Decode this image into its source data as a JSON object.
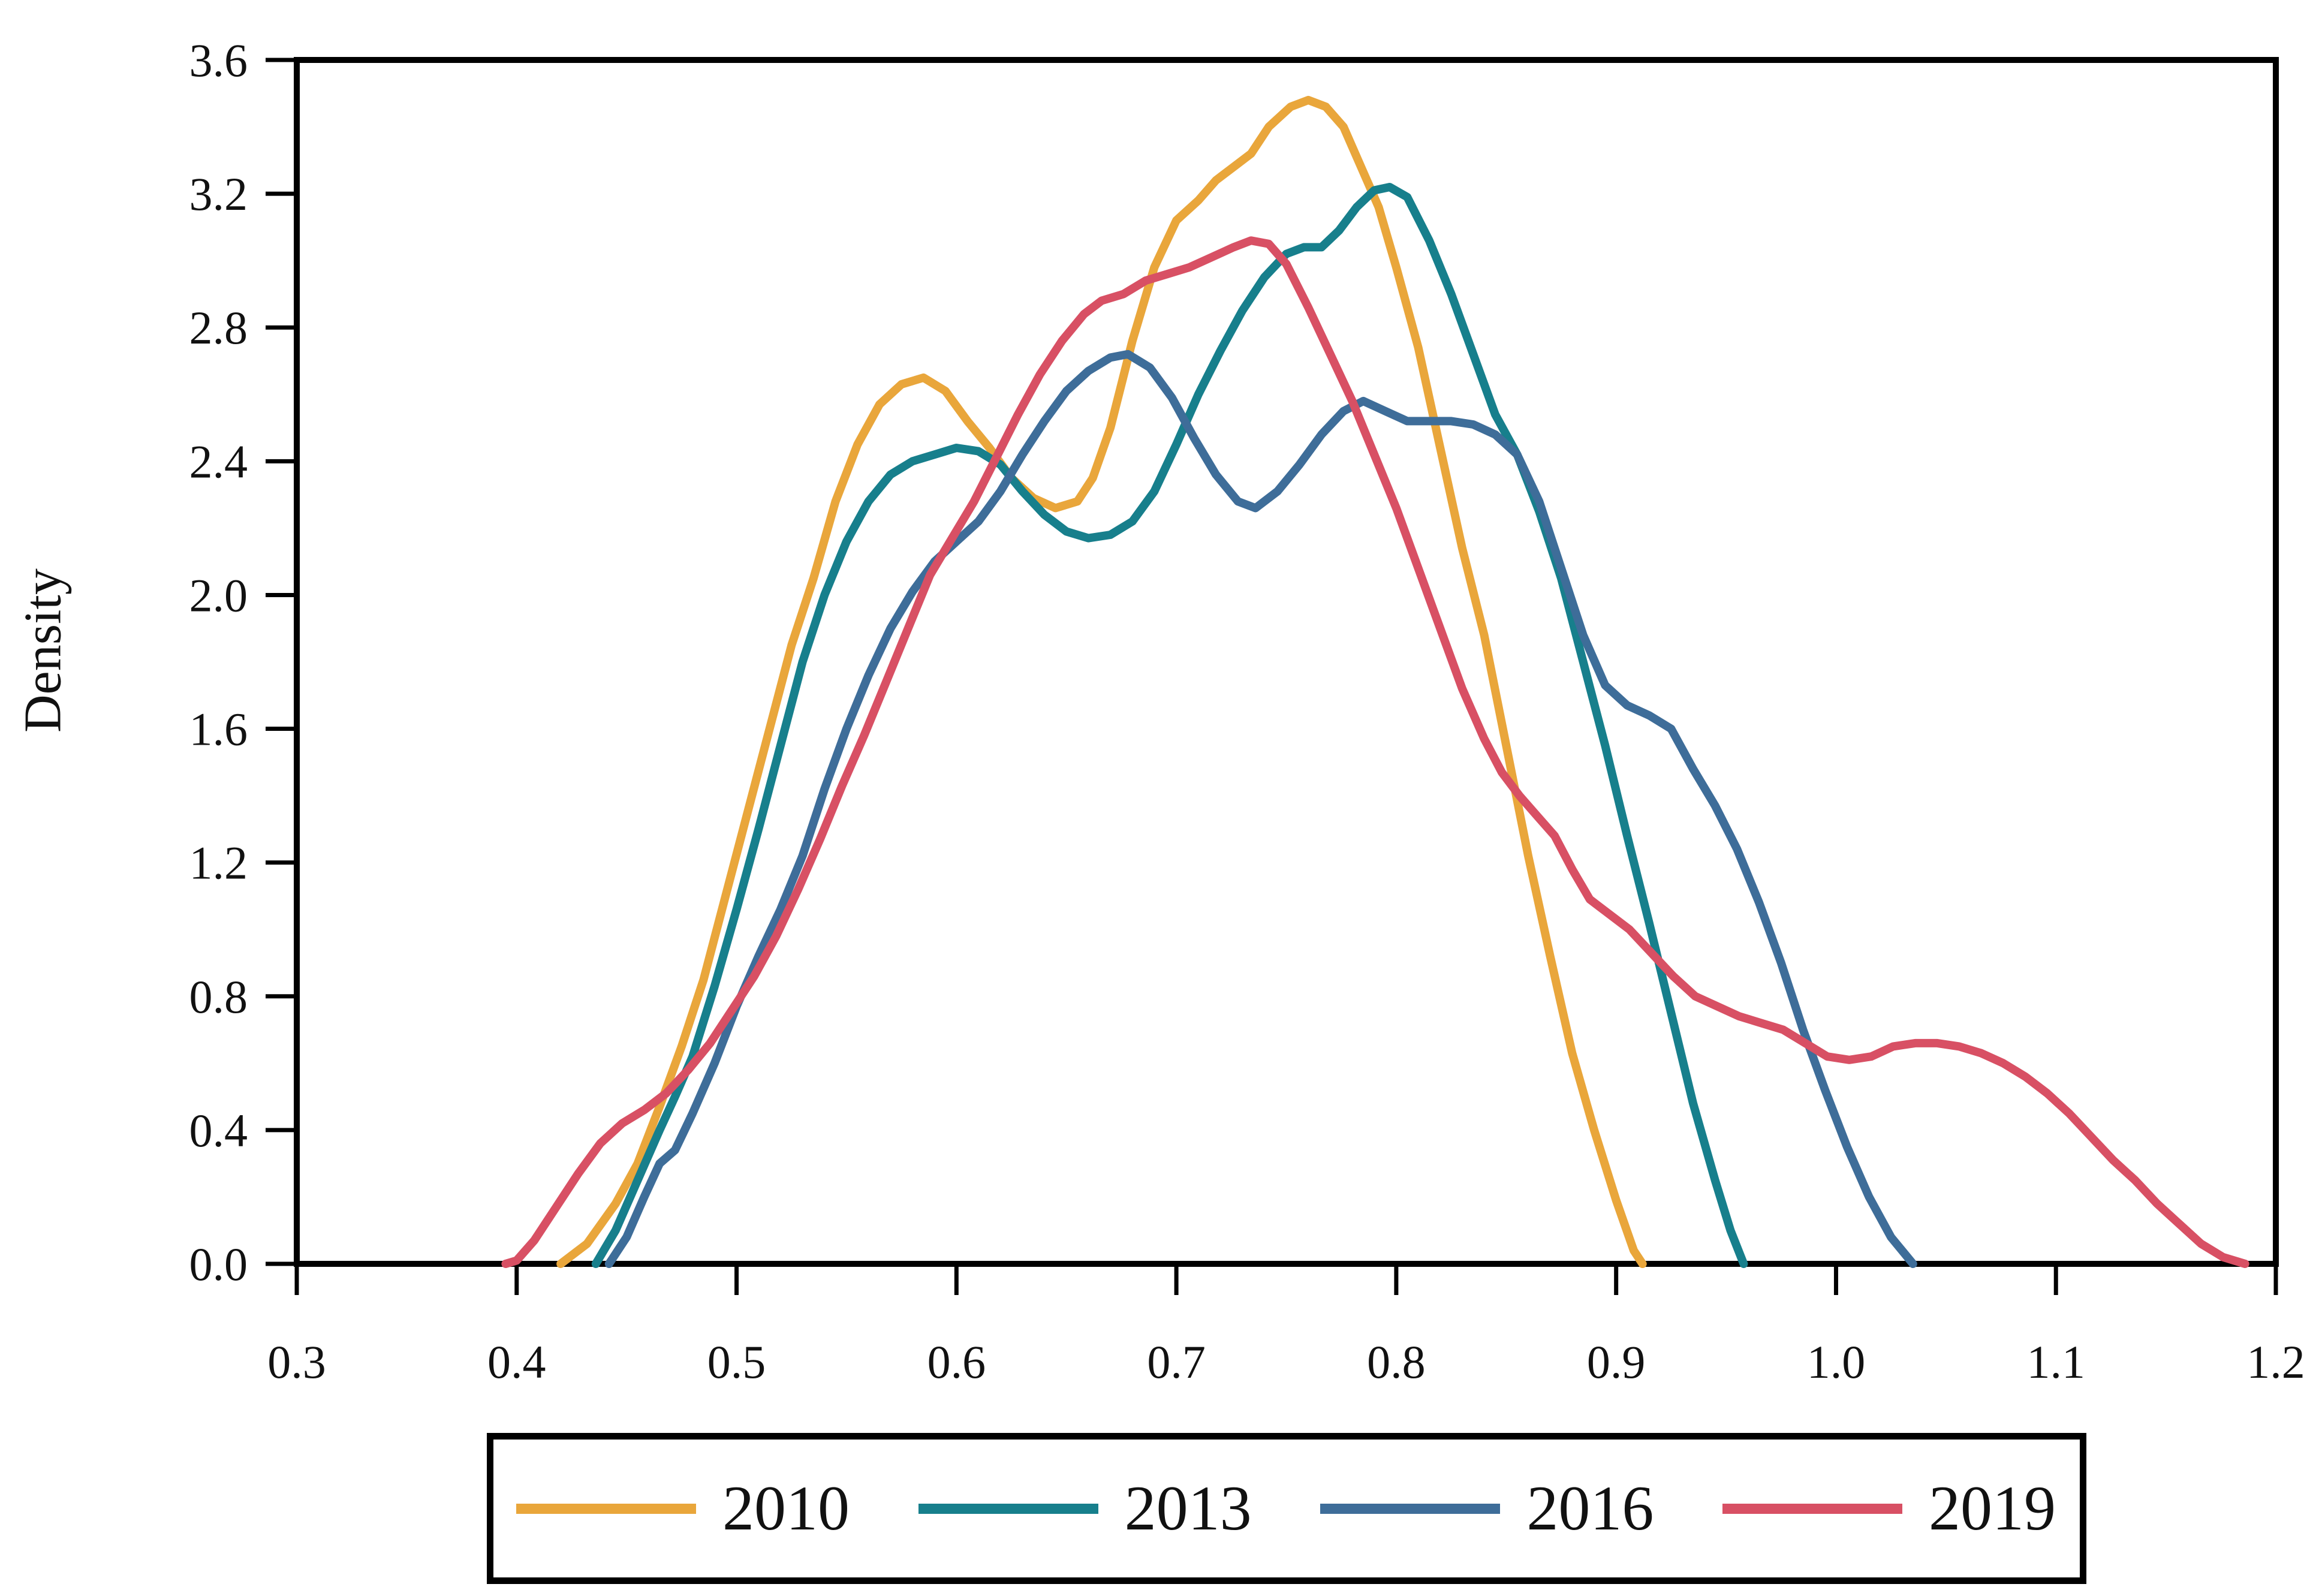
{
  "chart_data": {
    "type": "line",
    "title": "",
    "xlabel": "",
    "ylabel": "Density",
    "xlim": [
      0.3,
      1.2
    ],
    "ylim": [
      0.0,
      3.6
    ],
    "grid": false,
    "legend_position": "bottom",
    "x_ticks": [
      0.3,
      0.4,
      0.5,
      0.6,
      0.7,
      0.8,
      0.9,
      1.0,
      1.1,
      1.2
    ],
    "x_tick_labels": [
      "0.3",
      "0.4",
      "0.5",
      "0.6",
      "0.7",
      "0.8",
      "0.9",
      "1.0",
      "1.1",
      "1.2"
    ],
    "y_ticks": [
      0.0,
      0.4,
      0.8,
      1.2,
      1.6,
      2.0,
      2.4,
      2.8,
      3.2,
      3.6
    ],
    "y_tick_labels": [
      "0.0",
      "0.4",
      "0.8",
      "1.2",
      "1.6",
      "2.0",
      "2.4",
      "2.8",
      "3.2",
      "3.6"
    ],
    "series": [
      {
        "name": "2010",
        "color": "#E9A63B",
        "points": [
          [
            0.42,
            0
          ],
          [
            0.432,
            0.06
          ],
          [
            0.445,
            0.18
          ],
          [
            0.455,
            0.3
          ],
          [
            0.465,
            0.47
          ],
          [
            0.475,
            0.65
          ],
          [
            0.485,
            0.85
          ],
          [
            0.495,
            1.1
          ],
          [
            0.505,
            1.35
          ],
          [
            0.515,
            1.6
          ],
          [
            0.525,
            1.85
          ],
          [
            0.535,
            2.05
          ],
          [
            0.545,
            2.28
          ],
          [
            0.555,
            2.45
          ],
          [
            0.565,
            2.57
          ],
          [
            0.575,
            2.63
          ],
          [
            0.585,
            2.65
          ],
          [
            0.595,
            2.61
          ],
          [
            0.605,
            2.52
          ],
          [
            0.615,
            2.44
          ],
          [
            0.625,
            2.35
          ],
          [
            0.635,
            2.29
          ],
          [
            0.645,
            2.26
          ],
          [
            0.655,
            2.28
          ],
          [
            0.662,
            2.35
          ],
          [
            0.67,
            2.5
          ],
          [
            0.68,
            2.76
          ],
          [
            0.69,
            2.98
          ],
          [
            0.7,
            3.12
          ],
          [
            0.71,
            3.18
          ],
          [
            0.718,
            3.24
          ],
          [
            0.726,
            3.28
          ],
          [
            0.734,
            3.32
          ],
          [
            0.742,
            3.4
          ],
          [
            0.752,
            3.46
          ],
          [
            0.76,
            3.48
          ],
          [
            0.768,
            3.46
          ],
          [
            0.776,
            3.4
          ],
          [
            0.784,
            3.28
          ],
          [
            0.792,
            3.16
          ],
          [
            0.8,
            2.98
          ],
          [
            0.81,
            2.74
          ],
          [
            0.82,
            2.44
          ],
          [
            0.83,
            2.14
          ],
          [
            0.84,
            1.88
          ],
          [
            0.85,
            1.55
          ],
          [
            0.86,
            1.22
          ],
          [
            0.87,
            0.92
          ],
          [
            0.88,
            0.63
          ],
          [
            0.89,
            0.4
          ],
          [
            0.9,
            0.19
          ],
          [
            0.908,
            0.04
          ],
          [
            0.912,
            0
          ]
        ]
      },
      {
        "name": "2013",
        "color": "#177F8C",
        "points": [
          [
            0.436,
            0
          ],
          [
            0.445,
            0.1
          ],
          [
            0.455,
            0.25
          ],
          [
            0.465,
            0.4
          ],
          [
            0.472,
            0.5
          ],
          [
            0.48,
            0.62
          ],
          [
            0.49,
            0.83
          ],
          [
            0.5,
            1.06
          ],
          [
            0.51,
            1.3
          ],
          [
            0.52,
            1.55
          ],
          [
            0.53,
            1.8
          ],
          [
            0.54,
            2.0
          ],
          [
            0.55,
            2.16
          ],
          [
            0.56,
            2.28
          ],
          [
            0.57,
            2.36
          ],
          [
            0.58,
            2.4
          ],
          [
            0.59,
            2.42
          ],
          [
            0.6,
            2.44
          ],
          [
            0.61,
            2.43
          ],
          [
            0.62,
            2.39
          ],
          [
            0.63,
            2.31
          ],
          [
            0.64,
            2.24
          ],
          [
            0.65,
            2.19
          ],
          [
            0.66,
            2.17
          ],
          [
            0.67,
            2.18
          ],
          [
            0.68,
            2.22
          ],
          [
            0.69,
            2.31
          ],
          [
            0.7,
            2.45
          ],
          [
            0.71,
            2.6
          ],
          [
            0.72,
            2.73
          ],
          [
            0.73,
            2.85
          ],
          [
            0.74,
            2.95
          ],
          [
            0.75,
            3.02
          ],
          [
            0.758,
            3.04
          ],
          [
            0.766,
            3.04
          ],
          [
            0.774,
            3.09
          ],
          [
            0.782,
            3.16
          ],
          [
            0.79,
            3.21
          ],
          [
            0.797,
            3.22
          ],
          [
            0.805,
            3.19
          ],
          [
            0.815,
            3.06
          ],
          [
            0.825,
            2.9
          ],
          [
            0.835,
            2.72
          ],
          [
            0.845,
            2.54
          ],
          [
            0.855,
            2.42
          ],
          [
            0.865,
            2.25
          ],
          [
            0.875,
            2.05
          ],
          [
            0.885,
            1.8
          ],
          [
            0.895,
            1.55
          ],
          [
            0.905,
            1.28
          ],
          [
            0.915,
            1.02
          ],
          [
            0.925,
            0.75
          ],
          [
            0.935,
            0.48
          ],
          [
            0.945,
            0.25
          ],
          [
            0.952,
            0.1
          ],
          [
            0.958,
            0
          ]
        ]
      },
      {
        "name": "2016",
        "color": "#3E6D99",
        "points": [
          [
            0.442,
            0
          ],
          [
            0.45,
            0.08
          ],
          [
            0.458,
            0.2
          ],
          [
            0.465,
            0.3
          ],
          [
            0.472,
            0.34
          ],
          [
            0.48,
            0.45
          ],
          [
            0.49,
            0.6
          ],
          [
            0.5,
            0.77
          ],
          [
            0.51,
            0.92
          ],
          [
            0.52,
            1.06
          ],
          [
            0.53,
            1.22
          ],
          [
            0.54,
            1.42
          ],
          [
            0.55,
            1.6
          ],
          [
            0.56,
            1.76
          ],
          [
            0.57,
            1.9
          ],
          [
            0.58,
            2.01
          ],
          [
            0.59,
            2.1
          ],
          [
            0.6,
            2.16
          ],
          [
            0.61,
            2.22
          ],
          [
            0.62,
            2.31
          ],
          [
            0.63,
            2.42
          ],
          [
            0.64,
            2.52
          ],
          [
            0.65,
            2.61
          ],
          [
            0.66,
            2.67
          ],
          [
            0.67,
            2.71
          ],
          [
            0.678,
            2.72
          ],
          [
            0.688,
            2.68
          ],
          [
            0.698,
            2.59
          ],
          [
            0.708,
            2.47
          ],
          [
            0.718,
            2.36
          ],
          [
            0.728,
            2.28
          ],
          [
            0.736,
            2.26
          ],
          [
            0.746,
            2.31
          ],
          [
            0.756,
            2.39
          ],
          [
            0.766,
            2.48
          ],
          [
            0.776,
            2.55
          ],
          [
            0.785,
            2.58
          ],
          [
            0.795,
            2.55
          ],
          [
            0.805,
            2.52
          ],
          [
            0.815,
            2.52
          ],
          [
            0.825,
            2.52
          ],
          [
            0.835,
            2.51
          ],
          [
            0.845,
            2.48
          ],
          [
            0.855,
            2.42
          ],
          [
            0.865,
            2.28
          ],
          [
            0.875,
            2.08
          ],
          [
            0.885,
            1.88
          ],
          [
            0.895,
            1.73
          ],
          [
            0.905,
            1.67
          ],
          [
            0.915,
            1.64
          ],
          [
            0.925,
            1.6
          ],
          [
            0.935,
            1.48
          ],
          [
            0.945,
            1.37
          ],
          [
            0.955,
            1.24
          ],
          [
            0.965,
            1.08
          ],
          [
            0.975,
            0.9
          ],
          [
            0.985,
            0.7
          ],
          [
            0.995,
            0.52
          ],
          [
            1.005,
            0.35
          ],
          [
            1.015,
            0.2
          ],
          [
            1.025,
            0.08
          ],
          [
            1.035,
            0
          ]
        ]
      },
      {
        "name": "2019",
        "color": "#D85064",
        "points": [
          [
            0.395,
            0
          ],
          [
            0.4,
            0.01
          ],
          [
            0.408,
            0.07
          ],
          [
            0.418,
            0.17
          ],
          [
            0.428,
            0.27
          ],
          [
            0.438,
            0.36
          ],
          [
            0.448,
            0.42
          ],
          [
            0.458,
            0.46
          ],
          [
            0.468,
            0.51
          ],
          [
            0.478,
            0.58
          ],
          [
            0.488,
            0.66
          ],
          [
            0.498,
            0.76
          ],
          [
            0.508,
            0.86
          ],
          [
            0.518,
            0.98
          ],
          [
            0.528,
            1.12
          ],
          [
            0.538,
            1.27
          ],
          [
            0.548,
            1.43
          ],
          [
            0.558,
            1.58
          ],
          [
            0.568,
            1.74
          ],
          [
            0.578,
            1.9
          ],
          [
            0.588,
            2.06
          ],
          [
            0.598,
            2.17
          ],
          [
            0.608,
            2.28
          ],
          [
            0.618,
            2.41
          ],
          [
            0.628,
            2.54
          ],
          [
            0.638,
            2.66
          ],
          [
            0.648,
            2.76
          ],
          [
            0.658,
            2.84
          ],
          [
            0.666,
            2.88
          ],
          [
            0.676,
            2.9
          ],
          [
            0.686,
            2.94
          ],
          [
            0.696,
            2.96
          ],
          [
            0.706,
            2.98
          ],
          [
            0.716,
            3.01
          ],
          [
            0.726,
            3.04
          ],
          [
            0.734,
            3.06
          ],
          [
            0.742,
            3.05
          ],
          [
            0.75,
            2.99
          ],
          [
            0.76,
            2.86
          ],
          [
            0.77,
            2.72
          ],
          [
            0.78,
            2.58
          ],
          [
            0.79,
            2.42
          ],
          [
            0.8,
            2.26
          ],
          [
            0.81,
            2.08
          ],
          [
            0.82,
            1.9
          ],
          [
            0.83,
            1.72
          ],
          [
            0.84,
            1.57
          ],
          [
            0.848,
            1.47
          ],
          [
            0.856,
            1.4
          ],
          [
            0.864,
            1.34
          ],
          [
            0.872,
            1.28
          ],
          [
            0.88,
            1.18
          ],
          [
            0.888,
            1.09
          ],
          [
            0.896,
            1.05
          ],
          [
            0.906,
            1.0
          ],
          [
            0.916,
            0.93
          ],
          [
            0.926,
            0.86
          ],
          [
            0.936,
            0.8
          ],
          [
            0.946,
            0.77
          ],
          [
            0.956,
            0.74
          ],
          [
            0.966,
            0.72
          ],
          [
            0.976,
            0.7
          ],
          [
            0.986,
            0.66
          ],
          [
            0.996,
            0.62
          ],
          [
            1.006,
            0.61
          ],
          [
            1.016,
            0.62
          ],
          [
            1.026,
            0.65
          ],
          [
            1.036,
            0.66
          ],
          [
            1.046,
            0.66
          ],
          [
            1.056,
            0.65
          ],
          [
            1.066,
            0.63
          ],
          [
            1.076,
            0.6
          ],
          [
            1.086,
            0.56
          ],
          [
            1.096,
            0.51
          ],
          [
            1.106,
            0.45
          ],
          [
            1.116,
            0.38
          ],
          [
            1.126,
            0.31
          ],
          [
            1.136,
            0.25
          ],
          [
            1.146,
            0.18
          ],
          [
            1.156,
            0.12
          ],
          [
            1.166,
            0.06
          ],
          [
            1.176,
            0.02
          ],
          [
            1.186,
            0
          ]
        ]
      }
    ]
  },
  "legend": {
    "entries": [
      {
        "label": "2010",
        "color": "#E9A63B"
      },
      {
        "label": "2013",
        "color": "#177F8C"
      },
      {
        "label": "2016",
        "color": "#3E6D99"
      },
      {
        "label": "2019",
        "color": "#D85064"
      }
    ]
  },
  "style": {
    "frame_color": "#000000",
    "text_color": "#111111",
    "background": "#ffffff"
  }
}
